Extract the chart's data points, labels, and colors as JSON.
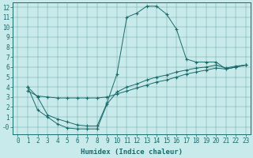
{
  "xlabel": "Humidex (Indice chaleur)",
  "bg_color": "#c8eaea",
  "line_color": "#1a6b6b",
  "xlim": [
    -0.5,
    23.5
  ],
  "ylim": [
    -0.7,
    12.5
  ],
  "xticks": [
    0,
    1,
    2,
    3,
    4,
    5,
    6,
    7,
    8,
    9,
    10,
    11,
    12,
    13,
    14,
    15,
    16,
    17,
    18,
    19,
    20,
    21,
    22,
    23
  ],
  "yticks": [
    0,
    1,
    2,
    3,
    4,
    5,
    6,
    7,
    8,
    9,
    10,
    11,
    12
  ],
  "ytick_labels": [
    "-0",
    "1",
    "2",
    "3",
    "4",
    "5",
    "6",
    "7",
    "8",
    "9",
    "10",
    "11",
    "12"
  ],
  "curve1_x": [
    1,
    2,
    3,
    4,
    5,
    6,
    7,
    8,
    9,
    10,
    11,
    12,
    13,
    14,
    15,
    16,
    17,
    18,
    19,
    20,
    21,
    22,
    23
  ],
  "curve1_y": [
    4.0,
    3.0,
    1.2,
    0.8,
    0.5,
    0.2,
    0.1,
    0.1,
    2.4,
    5.3,
    11.0,
    11.4,
    12.1,
    12.1,
    11.3,
    9.8,
    6.8,
    6.5,
    6.5,
    6.5,
    5.8,
    6.0,
    6.2
  ],
  "curve2_x": [
    1,
    2,
    3,
    4,
    5,
    6,
    7,
    8,
    9,
    10,
    11,
    12,
    13,
    14,
    15,
    16,
    17,
    18,
    19,
    20,
    21,
    22,
    23
  ],
  "curve2_y": [
    4.0,
    1.7,
    1.0,
    0.3,
    -0.1,
    -0.2,
    -0.2,
    -0.2,
    2.3,
    3.5,
    4.0,
    4.3,
    4.7,
    5.0,
    5.2,
    5.5,
    5.7,
    5.9,
    6.0,
    6.2,
    5.9,
    6.1,
    6.2
  ],
  "curve3_x": [
    1,
    2,
    3,
    4,
    5,
    6,
    7,
    8,
    9,
    10,
    11,
    12,
    13,
    14,
    15,
    16,
    17,
    18,
    19,
    20,
    21,
    22,
    23
  ],
  "curve3_y": [
    3.6,
    3.1,
    3.0,
    2.9,
    2.9,
    2.9,
    2.9,
    2.9,
    3.0,
    3.3,
    3.6,
    3.9,
    4.2,
    4.5,
    4.7,
    5.0,
    5.3,
    5.5,
    5.7,
    5.9,
    5.8,
    6.0,
    6.2
  ]
}
